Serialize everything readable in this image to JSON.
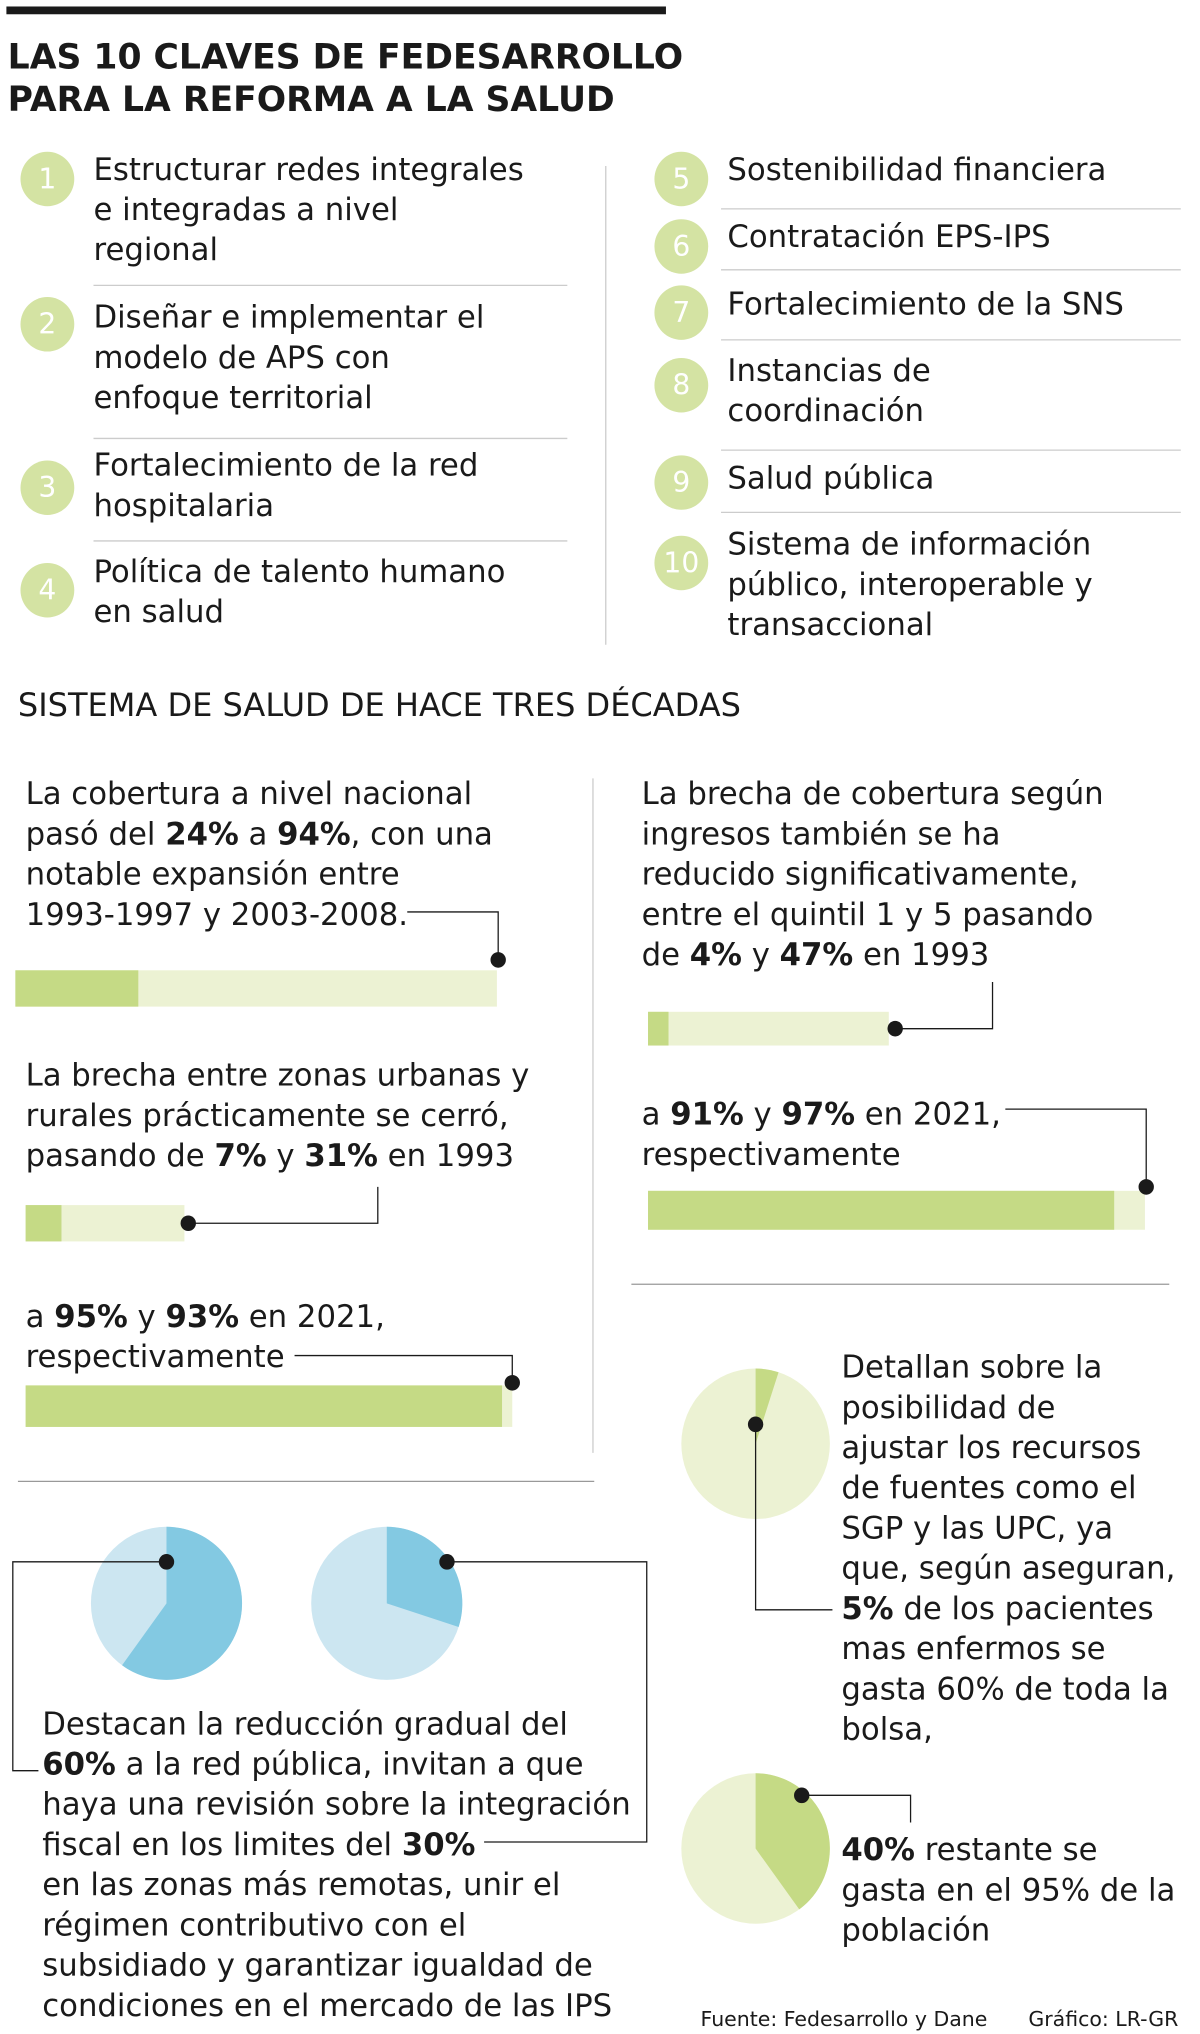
{
  "header": {
    "title": [
      "LAS 10 CLAVES DE FEDESARROLLO",
      "PARA LA REFORMA A LA SALUD"
    ]
  },
  "keys": [
    {
      "number": 1,
      "lines": [
        "Estructurar redes integrales",
        "e integradas a nivel",
        "regional"
      ]
    },
    {
      "number": 2,
      "lines": [
        "Diseñar e implementar el",
        "modelo de APS con",
        "enfoque territorial"
      ]
    },
    {
      "number": 3,
      "lines": [
        "Fortalecimiento de la red",
        "hospitalaria"
      ]
    },
    {
      "number": 4,
      "lines": [
        "Política de talento humano",
        "en salud"
      ]
    },
    {
      "number": 5,
      "lines": [
        "Sostenibilidad financiera"
      ]
    },
    {
      "number": 6,
      "lines": [
        "Contratación EPS-IPS"
      ]
    },
    {
      "number": 7,
      "lines": [
        "Fortalecimiento de la SNS"
      ]
    },
    {
      "number": 8,
      "lines": [
        "Instancias de",
        "coordinación"
      ]
    },
    {
      "number": 9,
      "lines": [
        "Salud pública"
      ]
    },
    {
      "number": 10,
      "lines": [
        "Sistema de información",
        "público, interoperable y",
        "transaccional"
      ]
    }
  ],
  "section_title": "SISTEMA DE SALUD DE HACE TRES DÉCADAS",
  "coverage": {
    "lines": [
      [
        "La cobertura a nivel nacional"
      ],
      [
        "pasó del ",
        {
          "value": 24,
          "label": "24%"
        },
        " a ",
        {
          "value": 94,
          "label": "94%"
        },
        ", con una"
      ],
      [
        "notable expansión entre"
      ],
      [
        "1993-1997 y 2003-2008."
      ]
    ]
  },
  "income_1993": {
    "lines": [
      [
        "La brecha de cobertura según"
      ],
      [
        "ingresos también se ha"
      ],
      [
        "reducido significativamente,"
      ],
      [
        "entre el quintil 1 y 5 pasando"
      ],
      [
        "de ",
        {
          "value": 4,
          "label": "4%"
        },
        " y ",
        {
          "value": 47,
          "label": "47%"
        },
        " en 1993"
      ]
    ]
  },
  "income_2021": {
    "lines": [
      [
        "a ",
        {
          "value": 91,
          "label": "91%"
        },
        " y ",
        {
          "value": 97,
          "label": "97%"
        },
        " en 2021,"
      ],
      [
        "respectivamente"
      ]
    ]
  },
  "urban_1993": {
    "lines": [
      [
        "La brecha entre zonas urbanas y"
      ],
      [
        "rurales prácticamente se cerró,"
      ],
      [
        "pasando de ",
        {
          "value": 7,
          "label": "7%"
        },
        " y ",
        {
          "value": 31,
          "label": "31%"
        },
        " en 1993"
      ]
    ]
  },
  "urban_2021": {
    "lines": [
      [
        "a ",
        {
          "value": 95,
          "label": "95%"
        },
        " y ",
        {
          "value": 93,
          "label": "93%"
        },
        " en 2021,"
      ],
      [
        "respectivamente"
      ]
    ]
  },
  "public_network": {
    "lines": [
      [
        "Destacan la reducción gradual del"
      ],
      [
        {
          "value": 60,
          "label": "60%"
        },
        " a la red pública, invitan a que"
      ],
      [
        "haya una revisión sobre la integración"
      ],
      [
        "fiscal en los limites del ",
        {
          "value": 30,
          "label": "30%"
        }
      ],
      [
        "en las zonas más remotas, unir el"
      ],
      [
        "régimen contributivo con el"
      ],
      [
        "subsidiado y garantizar igualdad de"
      ],
      [
        "condiciones en el mercado de las IPS"
      ]
    ]
  },
  "resources": {
    "lines": [
      [
        "Detallan sobre la"
      ],
      [
        "posibilidad de"
      ],
      [
        "ajustar los recursos"
      ],
      [
        "de fuentes como el"
      ],
      [
        "SGP y las UPC, ya"
      ],
      [
        "que, según aseguran,"
      ],
      [
        {
          "value": 5,
          "label": "5%"
        },
        " de los pacientes"
      ],
      [
        "mas enfermos se"
      ],
      [
        "gasta 60% de toda la"
      ],
      [
        "bolsa,"
      ]
    ]
  },
  "remaining": {
    "lines": [
      [
        {
          "value": 40,
          "label": "40%"
        },
        " restante se"
      ],
      [
        "gasta en el 95% de la"
      ],
      [
        "población"
      ]
    ]
  },
  "footer": {
    "source": "Fuente: Fedesarrollo y Dane",
    "credit": "Gráfico: LR-GR"
  }
}
